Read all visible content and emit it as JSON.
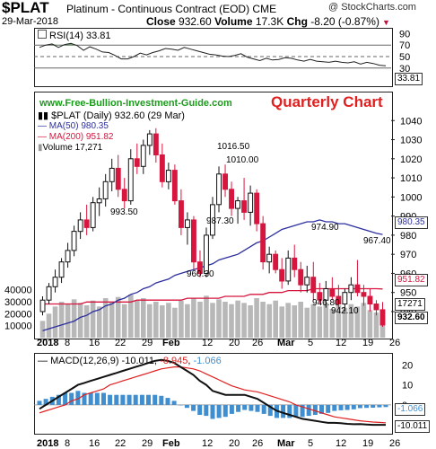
{
  "header": {
    "symbol": "$PLAT",
    "name": "Platinum - Continuous Contract (EOD)",
    "exchange": "CME",
    "date": "29-Mar-2018",
    "close_label": "Close",
    "close_value": "932.60",
    "volume_label": "Volume",
    "volume_value": "17.3K",
    "chg_label": "Chg",
    "chg_value": "-8.20 (-0.87%)",
    "brand": "@ StockCharts.com"
  },
  "colors": {
    "up": "#111111",
    "down": "#d6163f",
    "ma50": "#2c2f9c",
    "ma200": "#d6163f",
    "volume": "#b8b8b8",
    "rsi_fill": "#4f8f4f",
    "macd": "#111111",
    "signal": "#e02020",
    "hist": "#3f8fd0"
  },
  "rsi": {
    "label": "RSI(14) 33.81",
    "last_tag": "33.81"
  },
  "price": {
    "site": "www.Free-Bullion-Investment-Guide.com",
    "chart_title": "Quarterly Chart",
    "legend": {
      "series": "$PLAT (Daily) 932.60 (29 Mar)",
      "ma50": "MA(50) 980.35",
      "ma200": "MA(200) 951.82",
      "volume": "Volume 17,271"
    },
    "tags": {
      "ma50": "980.35",
      "ma200": "951.82",
      "volume": "17271",
      "close": "932.60"
    },
    "annotations": [
      "1016.50",
      "1010.00",
      "993.50",
      "987.30",
      "974.90",
      "967.40",
      "960.30",
      "946.80",
      "942.10"
    ]
  },
  "macd": {
    "label_prefix": "MACD(12,26,9)",
    "macd_value": "-10.011",
    "signal_value": "-8.945",
    "hist_value": "-1.066",
    "tags": {
      "hist": "-1.066",
      "macd": "-10.011"
    }
  },
  "x_axis": {
    "labels": [
      "2018",
      "8",
      "16",
      "22",
      "29",
      "Feb",
      "12",
      "20",
      "26",
      "Mar",
      "5",
      "12",
      "19",
      "26"
    ]
  },
  "chart_data": [
    {
      "type": "line",
      "title": "RSI(14)",
      "ylim": [
        0,
        100
      ],
      "yticks": [
        10,
        30,
        50,
        70,
        90
      ],
      "reference_lines": [
        30,
        50,
        70
      ],
      "values": [
        66,
        70,
        72,
        66,
        71,
        73,
        69,
        61,
        67,
        63,
        58,
        57,
        52,
        46,
        46,
        50,
        56,
        53,
        57,
        60,
        64,
        63,
        61,
        66,
        63,
        60,
        57,
        54,
        53,
        51,
        50,
        52,
        55,
        49,
        46,
        43,
        47,
        44,
        45,
        48,
        47,
        44,
        42,
        45,
        42,
        41,
        40,
        42,
        40,
        39,
        41,
        37,
        40,
        38,
        35,
        34
      ],
      "last": 33.81
    },
    {
      "type": "bar",
      "title": "$PLAT (Daily)",
      "chart_kind": "candlestick",
      "ylim": [
        932,
        1042
      ],
      "yticks": [
        940,
        950,
        960,
        970,
        980,
        990,
        1000,
        1010,
        1020,
        1030,
        1040
      ],
      "volume_yticks": [
        10000,
        20000,
        30000,
        40000
      ],
      "volume_ylim": [
        0,
        90000
      ],
      "series": [
        {
          "name": "$PLAT",
          "ohlc": [
            [
              940,
              948,
              938,
              946
            ],
            [
              946,
              955,
              944,
              953
            ],
            [
              953,
              962,
              950,
              958
            ],
            [
              958,
              968,
              955,
              966
            ],
            [
              966,
              976,
              963,
              972
            ],
            [
              972,
              985,
              969,
              982
            ],
            [
              982,
              992,
              978,
              988
            ],
            [
              988,
              996,
              980,
              984
            ],
            [
              984,
              1000,
              982,
              997
            ],
            [
              997,
              1005,
              990,
              999
            ],
            [
              999,
              1012,
              995,
              1008
            ],
            [
              1008,
              1020,
              1003,
              1015
            ],
            [
              1015,
              1022,
              1000,
              1004
            ],
            [
              1004,
              1010,
              994,
              998
            ],
            [
              998,
              1025,
              996,
              1020
            ],
            [
              1020,
              1028,
              1012,
              1016
            ],
            [
              1016,
              1030,
              1012,
              1027
            ],
            [
              1027,
              1035,
              1022,
              1033
            ],
            [
              1033,
              1036,
              1018,
              1022
            ],
            [
              1022,
              1028,
              1005,
              1008
            ],
            [
              1008,
              1018,
              1004,
              1014
            ],
            [
              1014,
              1017,
              996,
              998
            ],
            [
              998,
              1004,
              980,
              984
            ],
            [
              984,
              992,
              975,
              988
            ],
            [
              988,
              990,
              962,
              966
            ],
            [
              966,
              972,
              958,
              960
            ],
            [
              960,
              984,
              958,
              980
            ],
            [
              980,
              1000,
              978,
              996
            ],
            [
              996,
              1016,
              992,
              1012
            ],
            [
              1012,
              1017,
              1000,
              1004
            ],
            [
              1004,
              1008,
              990,
              994
            ],
            [
              994,
              1000,
              986,
              998
            ],
            [
              998,
              1010,
              988,
              992
            ],
            [
              992,
              1006,
              985,
              1002
            ],
            [
              1002,
              1004,
              982,
              986
            ],
            [
              986,
              990,
              962,
              966
            ],
            [
              966,
              974,
              960,
              970
            ],
            [
              970,
              972,
              960,
              962
            ],
            [
              962,
              968,
              952,
              956
            ],
            [
              956,
              972,
              954,
              968
            ],
            [
              968,
              975,
              958,
              962
            ],
            [
              962,
              966,
              950,
              954
            ],
            [
              954,
              964,
              950,
              958
            ],
            [
              958,
              966,
              946,
              950
            ],
            [
              950,
              955,
              944,
              946
            ],
            [
              946,
              956,
              942,
              952
            ],
            [
              952,
              958,
              946,
              948
            ],
            [
              948,
              954,
              942,
              944
            ],
            [
              944,
              952,
              940,
              950
            ],
            [
              950,
              958,
              946,
              954
            ],
            [
              954,
              967,
              948,
              950
            ],
            [
              950,
              954,
              943,
              948
            ],
            [
              948,
              952,
              940,
              944
            ],
            [
              944,
              946,
              938,
              941
            ],
            [
              941,
              945,
              932,
              933
            ]
          ]
        },
        {
          "name": "MA(50)",
          "values": [
            930,
            931,
            932,
            933,
            934,
            935,
            937,
            938,
            940,
            941,
            943,
            944,
            946,
            947,
            949,
            950,
            952,
            953,
            955,
            956,
            957,
            959,
            960,
            961,
            962,
            963,
            964,
            965,
            967,
            968,
            969,
            970,
            972,
            974,
            976,
            977,
            979,
            981,
            983,
            984,
            985,
            986,
            987,
            987,
            988,
            987,
            987,
            986,
            986,
            985,
            984,
            983,
            982,
            981,
            980.35
          ]
        },
        {
          "name": "MA(200)",
          "values": [
            944,
            944,
            944,
            944,
            944,
            944,
            944,
            945,
            945,
            945,
            945,
            945,
            945,
            945,
            945,
            946,
            946,
            946,
            946,
            946,
            946,
            946,
            946,
            947,
            947,
            947,
            947,
            947,
            947,
            948,
            948,
            948,
            948,
            949,
            949,
            949,
            950,
            950,
            950,
            951,
            951,
            951,
            951,
            952,
            952,
            952,
            952,
            952,
            952,
            952,
            952,
            952,
            952,
            952,
            951.82
          ]
        },
        {
          "name": "Volume",
          "values": [
            14000,
            20000,
            26000,
            30000,
            28000,
            32000,
            29000,
            27000,
            31000,
            26000,
            33000,
            30000,
            34000,
            28000,
            36000,
            31000,
            33000,
            28000,
            30000,
            27000,
            29000,
            25000,
            31000,
            28000,
            33000,
            30000,
            35000,
            29000,
            32000,
            30000,
            28000,
            31000,
            29000,
            27000,
            33000,
            30000,
            28000,
            31000,
            26000,
            29000,
            27000,
            30000,
            25000,
            28000,
            26000,
            29000,
            24000,
            27000,
            25000,
            28000,
            26000,
            29000,
            23000,
            21000,
            17271
          ]
        }
      ]
    },
    {
      "type": "line",
      "title": "MACD(12,26,9)",
      "ylim": [
        -14,
        26
      ],
      "yticks": [
        0,
        10,
        20
      ],
      "series": [
        {
          "name": "MACD",
          "values": [
            -2,
            0,
            2,
            4,
            6,
            8,
            10,
            11,
            12,
            13,
            14,
            15,
            16,
            17,
            18,
            19,
            20,
            21,
            22,
            22.5,
            22,
            21,
            19,
            17,
            15,
            12,
            10,
            7,
            6,
            5,
            5,
            5,
            5,
            4,
            3,
            1,
            -1,
            -3,
            -4,
            -5,
            -6,
            -7,
            -7.5,
            -8,
            -8.5,
            -9,
            -9,
            -9.2,
            -9.5,
            -9.7,
            -9.6,
            -9.8,
            -10,
            -10,
            -10.011
          ]
        },
        {
          "name": "Signal",
          "values": [
            -4,
            -3,
            -2,
            -1,
            0,
            2,
            3,
            5,
            6,
            7,
            8,
            10,
            11,
            12,
            13,
            14,
            15,
            16,
            17,
            18,
            18.5,
            19,
            19,
            18.5,
            18,
            17,
            15.5,
            14,
            12.5,
            11,
            9.5,
            8.5,
            7.5,
            7,
            6.5,
            5.5,
            4.5,
            3.5,
            2.5,
            1.5,
            0,
            -1,
            -2,
            -3,
            -4,
            -5,
            -6,
            -6.5,
            -7,
            -7.5,
            -8,
            -8.3,
            -8.6,
            -8.8,
            -8.945
          ]
        }
      ]
    }
  ]
}
